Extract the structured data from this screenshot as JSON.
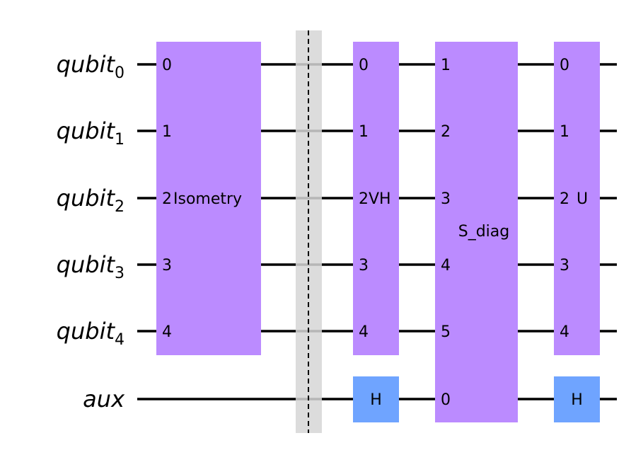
{
  "qubits": [
    {
      "name": "qubit",
      "index": "0"
    },
    {
      "name": "qubit",
      "index": "1"
    },
    {
      "name": "qubit",
      "index": "2"
    },
    {
      "name": "qubit",
      "index": "3"
    },
    {
      "name": "qubit",
      "index": "4"
    }
  ],
  "aux": {
    "name": "aux"
  },
  "gates": {
    "isometry": {
      "name": "Isometry",
      "ports": [
        "0",
        "1",
        "2",
        "3",
        "4"
      ]
    },
    "vh": {
      "name": "VH",
      "ports": [
        "0",
        "1",
        "2",
        "3",
        "4"
      ]
    },
    "h1": {
      "name": "H"
    },
    "s_diag": {
      "name": "S_diag",
      "ports": [
        "1",
        "2",
        "3",
        "4",
        "5",
        "0"
      ]
    },
    "u": {
      "name": "U",
      "ports": [
        "0",
        "1",
        "2",
        "3",
        "4"
      ]
    },
    "h2": {
      "name": "H"
    }
  },
  "colors": {
    "multi_gate": "#BB8BFF",
    "h_gate": "#6FA4FF",
    "barrier": "#D6D6D6"
  }
}
